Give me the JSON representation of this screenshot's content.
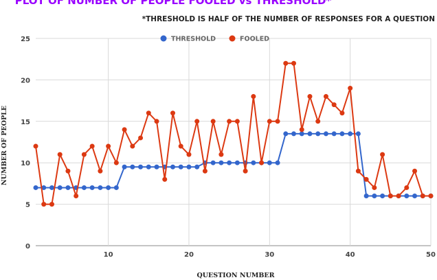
{
  "chart_data": {
    "type": "line",
    "title": "PLOT OF NUMBER OF PEOPLE FOOLED vs THRESHOLD*",
    "subtitle": "*THRESHOLD IS HALF OF THE NUMBER OF RESPONSES FOR A QUESTION",
    "xlabel": "QUESTION NUMBER",
    "ylabel": "NUMBER OF PEOPLE",
    "xlim": [
      1,
      50
    ],
    "ylim": [
      0,
      25
    ],
    "x_ticks": [
      10,
      20,
      30,
      40,
      50
    ],
    "y_ticks": [
      0,
      5,
      10,
      15,
      20,
      25
    ],
    "grid": true,
    "legend_position": "top-center",
    "x": [
      1,
      2,
      3,
      4,
      5,
      6,
      7,
      8,
      9,
      10,
      11,
      12,
      13,
      14,
      15,
      16,
      17,
      18,
      19,
      20,
      21,
      22,
      23,
      24,
      25,
      26,
      27,
      28,
      29,
      30,
      31,
      32,
      33,
      34,
      35,
      36,
      37,
      38,
      39,
      40,
      41,
      42,
      43,
      44,
      45,
      46,
      47,
      48,
      49,
      50
    ],
    "series": [
      {
        "name": "THRESHOLD",
        "color": "#3366cc",
        "values": [
          7,
          7,
          7,
          7,
          7,
          7,
          7,
          7,
          7,
          7,
          7,
          9.5,
          9.5,
          9.5,
          9.5,
          9.5,
          9.5,
          9.5,
          9.5,
          9.5,
          9.5,
          10,
          10,
          10,
          10,
          10,
          10,
          10,
          10,
          10,
          10,
          13.5,
          13.5,
          13.5,
          13.5,
          13.5,
          13.5,
          13.5,
          13.5,
          13.5,
          13.5,
          6,
          6,
          6,
          6,
          6,
          6,
          6,
          6,
          6
        ]
      },
      {
        "name": "FOOLED",
        "color": "#dc3912",
        "values": [
          12,
          5,
          5,
          11,
          9,
          6,
          11,
          12,
          9,
          12,
          10,
          14,
          12,
          13,
          16,
          15,
          8,
          16,
          12,
          11,
          15,
          9,
          15,
          11,
          15,
          15,
          9,
          18,
          10,
          15,
          15,
          22,
          22,
          14,
          18,
          15,
          18,
          17,
          16,
          19,
          9,
          8,
          7,
          11,
          6,
          6,
          7,
          9,
          6,
          6
        ]
      }
    ],
    "colors": {
      "title": "#9900ff",
      "grid": "#d9d9d9",
      "tick": "#444444",
      "text": "#222222"
    }
  }
}
